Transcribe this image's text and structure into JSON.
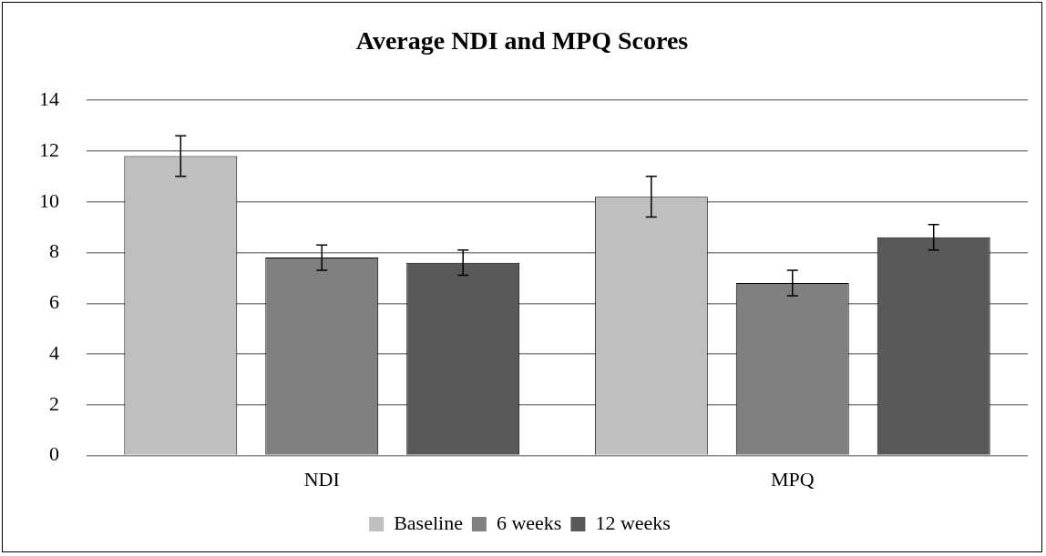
{
  "chart_data": {
    "type": "bar",
    "title": "Average NDI and MPQ Scores",
    "categories": [
      "NDI",
      "MPQ"
    ],
    "series": [
      {
        "name": "Baseline",
        "color": "#bfbfbf",
        "values": [
          11.8,
          10.2
        ],
        "errors": [
          0.8,
          0.8
        ]
      },
      {
        "name": "6 weeks",
        "color": "#808080",
        "values": [
          7.8,
          6.8
        ],
        "errors": [
          0.5,
          0.5
        ]
      },
      {
        "name": "12 weeks",
        "color": "#595959",
        "values": [
          7.6,
          8.6
        ],
        "errors": [
          0.5,
          0.5
        ]
      }
    ],
    "ylim": [
      0,
      14
    ],
    "yticks": [
      0,
      2,
      4,
      6,
      8,
      10,
      12,
      14
    ],
    "grid": "y",
    "legend": "bottom"
  }
}
